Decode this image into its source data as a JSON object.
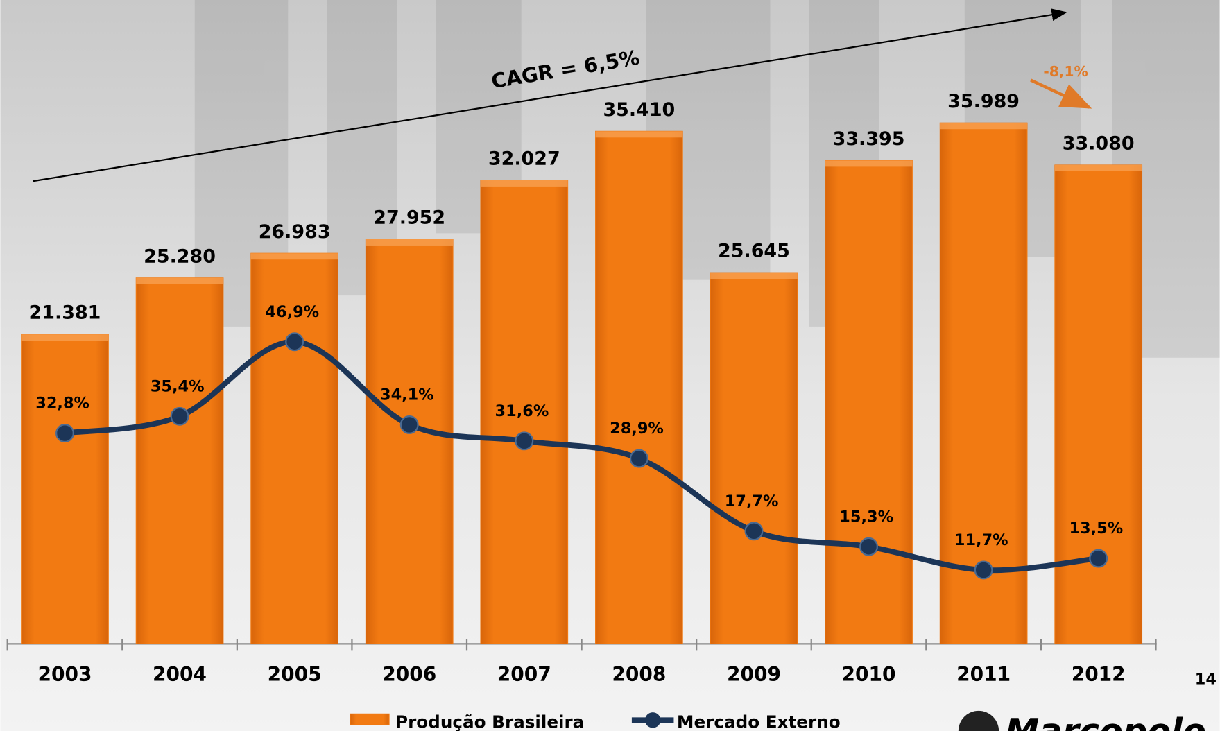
{
  "chart_data": {
    "type": "bar",
    "categories": [
      "2003",
      "2004",
      "2005",
      "2006",
      "2007",
      "2008",
      "2009",
      "2010",
      "2011",
      "2012"
    ],
    "series": [
      {
        "name": "Produção Brasileira",
        "type": "bar",
        "color": "#f07810",
        "values": [
          21381,
          25280,
          26983,
          27952,
          32027,
          35410,
          25645,
          33395,
          35989,
          33080
        ],
        "value_labels": [
          "21.381",
          "25.280",
          "26.983",
          "27.952",
          "32.027",
          "35.410",
          "25.645",
          "33.395",
          "35.989",
          "33.080"
        ]
      },
      {
        "name": "Mercado Externo",
        "type": "line",
        "color": "#1c3557",
        "values": [
          32.8,
          35.4,
          46.9,
          34.1,
          31.6,
          28.9,
          17.7,
          15.3,
          11.7,
          13.5
        ],
        "value_labels": [
          "32,8%",
          "35,4%",
          "46,9%",
          "34,1%",
          "31,6%",
          "28,9%",
          "17,7%",
          "15,3%",
          "11,7%",
          "13,5%"
        ]
      }
    ],
    "annotations": [
      "CAGR = 6,5%",
      "-8,1%"
    ],
    "page_number": "14",
    "logo_text": "Marcopolo"
  }
}
